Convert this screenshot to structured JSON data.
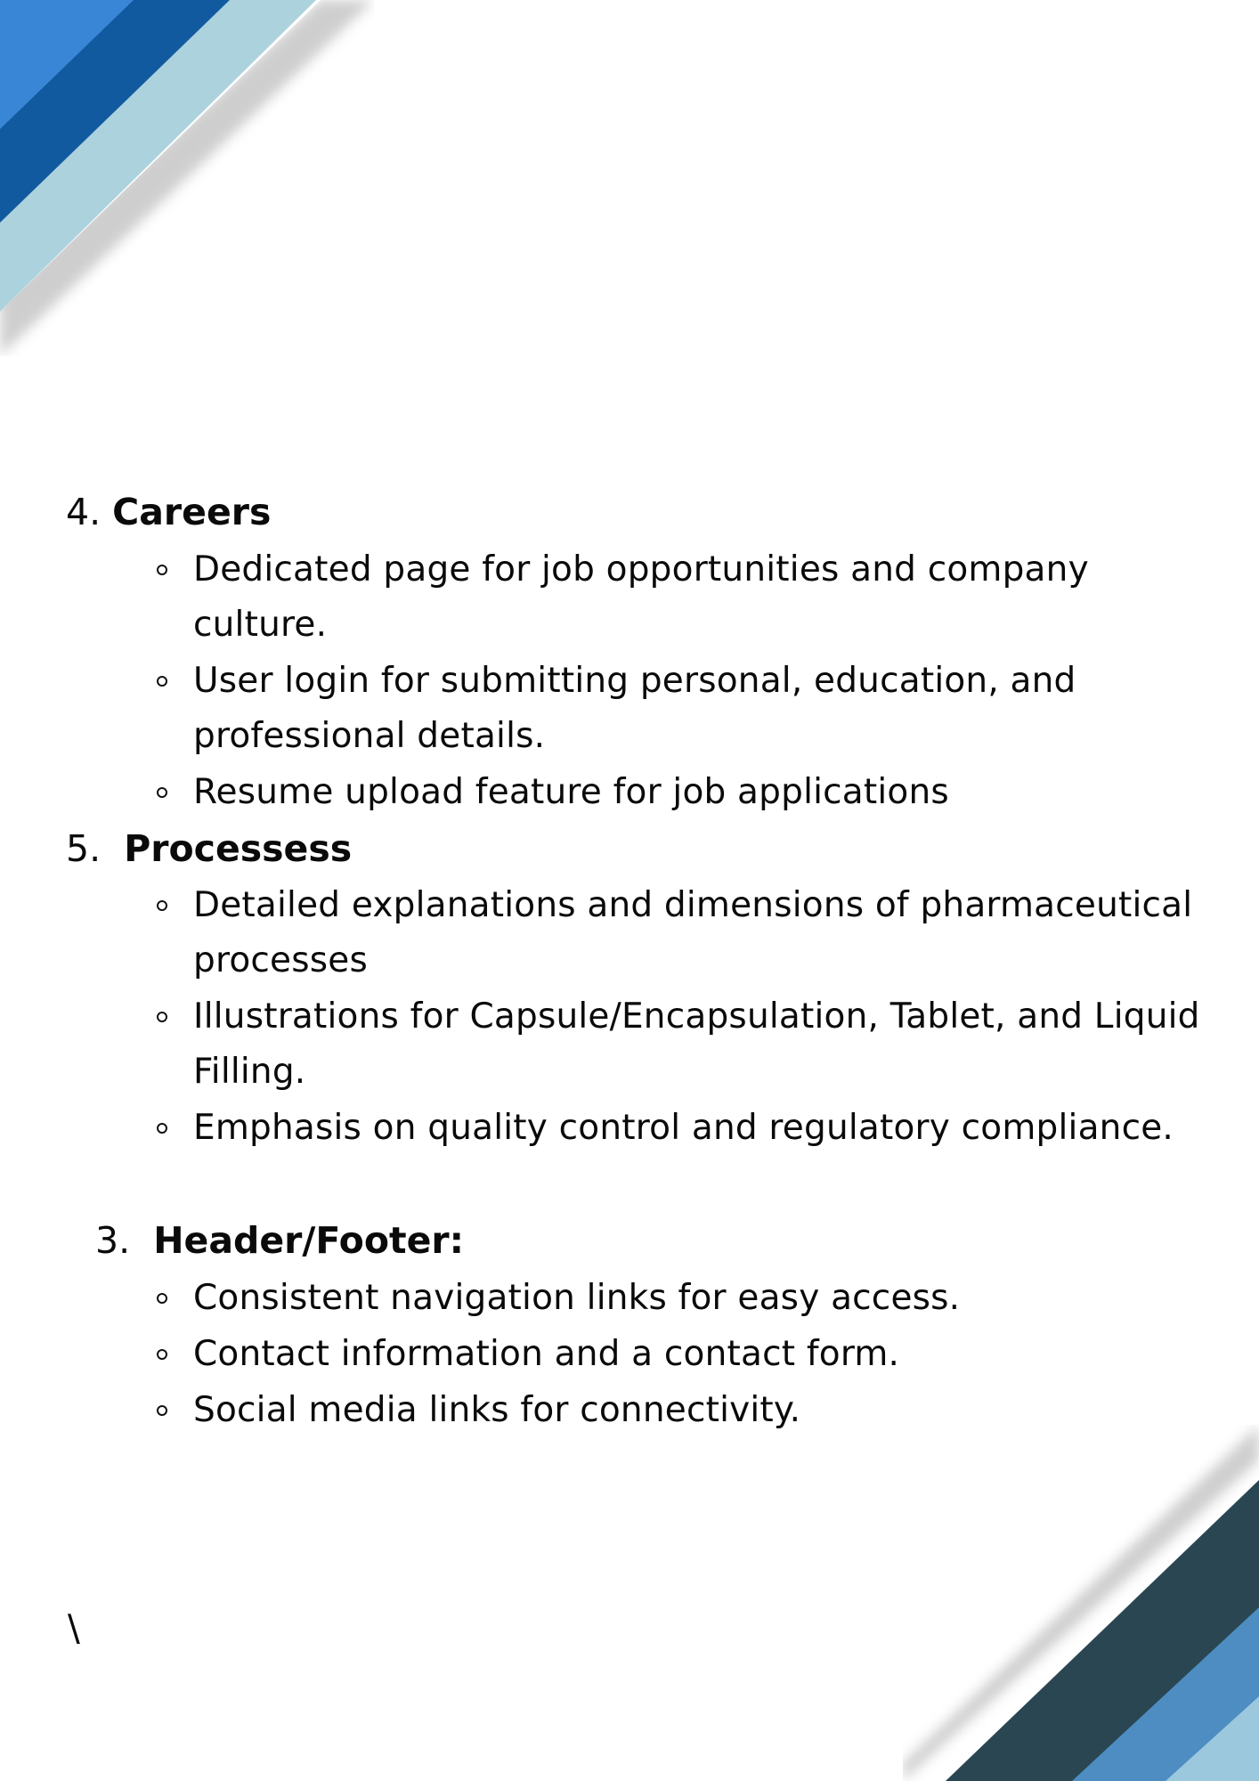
{
  "colors": {
    "blue_bright": "#3a86d6",
    "blue_dark": "#125aa0",
    "blue_light": "#acd2de",
    "slate_dark": "#2a4652",
    "blue_mid": "#4d8dc2",
    "blue_pale": "#9cc8de"
  },
  "sections": [
    {
      "number": "4.",
      "title": "Careers",
      "bullets": [
        "Dedicated page for job opportunities and company culture.",
        "User login for submitting personal, education, and professional details.",
        "Resume upload feature for job applications"
      ]
    },
    {
      "number": "5.",
      "title": "Processess",
      "bullets": [
        "Detailed explanations and dimensions of pharmaceutical processes",
        "Illustrations for Capsule/Encapsulation, Tablet, and Liquid Filling.",
        "Emphasis on quality control and regulatory compliance."
      ]
    },
    {
      "number": "3.",
      "title": "Header/Footer:",
      "bullets": [
        "Consistent navigation links for easy access.",
        "Contact information and a contact form.",
        "Social media links for connectivity."
      ]
    }
  ],
  "stray_mark": "\\"
}
